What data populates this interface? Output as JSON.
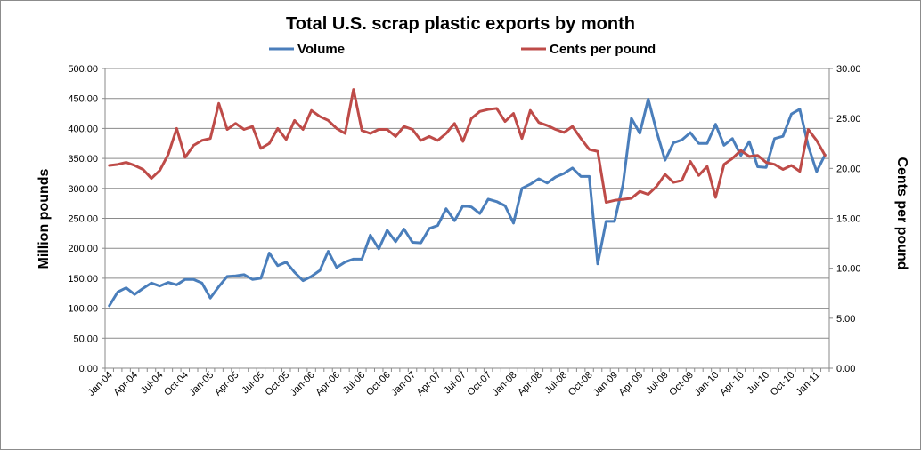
{
  "chart_data": {
    "type": "line",
    "title": "Total U.S. scrap plastic exports by month",
    "ylabel": "Million pounds",
    "y2label": "Cents per pound",
    "ylim": [
      0,
      500
    ],
    "y2lim": [
      0,
      30
    ],
    "yticks": [
      "0.00",
      "50.00",
      "100.00",
      "150.00",
      "200.00",
      "250.00",
      "300.00",
      "350.00",
      "400.00",
      "450.00",
      "500.00"
    ],
    "y2ticks": [
      "0.00",
      "5.00",
      "10.00",
      "15.00",
      "20.00",
      "25.00",
      "30.00"
    ],
    "xtick_labels": [
      "Jan-04",
      "Apr-04",
      "Jul-04",
      "Oct-04",
      "Jan-05",
      "Apr-05",
      "Jul-05",
      "Oct-05",
      "Jan-06",
      "Apr-06",
      "Jul-06",
      "Oct-06",
      "Jan-07",
      "Apr-07",
      "Jul-07",
      "Oct-07",
      "Jan-08",
      "Apr-08",
      "Jul-08",
      "Oct-08",
      "Jan-09",
      "Apr-09",
      "Jul-09",
      "Oct-09",
      "Jan-10",
      "Apr-10",
      "Jul-10",
      "Oct-10",
      "Jan-11"
    ],
    "grid": "horizontal",
    "legend": "top",
    "series": [
      {
        "name": "Volume",
        "axis": "left",
        "color": "#4a7ebb",
        "values": [
          104,
          127,
          134,
          123,
          133,
          142,
          137,
          143,
          139,
          148,
          148,
          142,
          117,
          136,
          153,
          154,
          156,
          148,
          150,
          192,
          171,
          177,
          160,
          146,
          153,
          163,
          195,
          168,
          177,
          182,
          182,
          222,
          199,
          230,
          211,
          232,
          210,
          209,
          233,
          238,
          266,
          246,
          271,
          269,
          258,
          282,
          278,
          271,
          242,
          300,
          307,
          316,
          309,
          319,
          325,
          334,
          320,
          320,
          174,
          245,
          245,
          306,
          417,
          392,
          449,
          395,
          347,
          376,
          381,
          393,
          375,
          375,
          407,
          372,
          383,
          355,
          378,
          336,
          335,
          383,
          387,
          424,
          432,
          371,
          328,
          356
        ]
      },
      {
        "name": "Cents per pound",
        "axis": "right",
        "color": "#be4b48",
        "values": [
          20.3,
          20.4,
          20.6,
          20.3,
          19.9,
          19.0,
          19.8,
          21.4,
          24.0,
          21.1,
          22.3,
          22.8,
          23.0,
          26.5,
          23.9,
          24.5,
          23.9,
          24.2,
          22.0,
          22.5,
          24.0,
          22.9,
          24.8,
          23.9,
          25.8,
          25.2,
          24.8,
          24.0,
          23.5,
          27.9,
          23.8,
          23.5,
          23.9,
          23.9,
          23.2,
          24.2,
          23.9,
          22.8,
          23.2,
          22.8,
          23.5,
          24.5,
          22.7,
          25.0,
          25.7,
          25.9,
          26.0,
          24.7,
          25.5,
          23.0,
          25.8,
          24.6,
          24.3,
          23.9,
          23.6,
          24.2,
          23.0,
          21.9,
          21.7,
          16.6,
          16.8,
          16.9,
          17.0,
          17.7,
          17.4,
          18.2,
          19.4,
          18.6,
          18.8,
          20.7,
          19.3,
          20.2,
          17.1,
          20.4,
          21.0,
          21.8,
          21.2,
          21.3,
          20.6,
          20.4,
          19.9,
          20.3,
          19.7,
          23.9,
          22.8,
          21.3
        ]
      }
    ]
  }
}
